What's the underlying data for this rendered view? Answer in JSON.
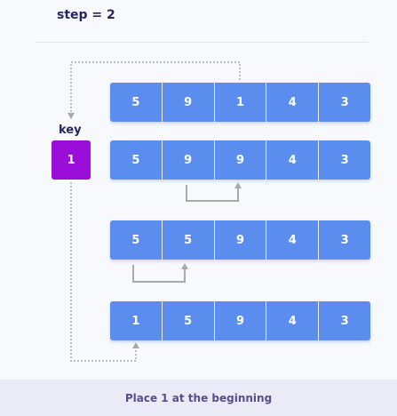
{
  "step_label": "step = 2",
  "key": {
    "label": "key",
    "value": "1"
  },
  "arrays": [
    {
      "name": "array-row-initial",
      "values": [
        "5",
        "9",
        "1",
        "4",
        "3"
      ]
    },
    {
      "name": "array-row-shift-1",
      "values": [
        "5",
        "9",
        "9",
        "4",
        "3"
      ]
    },
    {
      "name": "array-row-shift-2",
      "values": [
        "5",
        "5",
        "9",
        "4",
        "3"
      ]
    },
    {
      "name": "array-row-final",
      "values": [
        "1",
        "5",
        "9",
        "4",
        "3"
      ]
    }
  ],
  "caption": "Place 1 at the beginning",
  "colors": {
    "cell": "#5b8dee",
    "key": "#9b0dd9",
    "arrow": "#a9a9a9",
    "caption_bg": "#ebeaf7"
  }
}
